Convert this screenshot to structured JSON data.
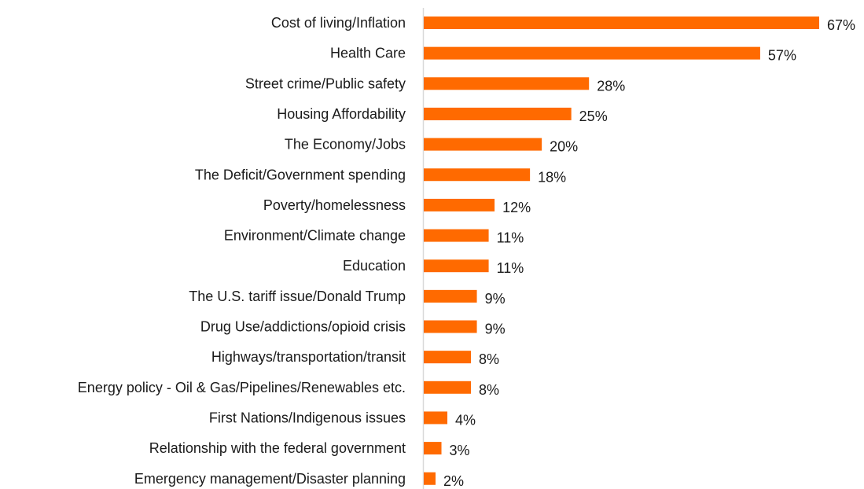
{
  "chart_data": {
    "type": "bar",
    "orientation": "horizontal",
    "title": "",
    "xlabel": "",
    "ylabel": "",
    "categories": [
      "Cost of living/Inflation",
      "Health Care",
      "Street crime/Public safety",
      "Housing Affordability",
      "The Economy/Jobs",
      "The Deficit/Government spending",
      "Poverty/homelessness",
      "Environment/Climate change",
      "Education",
      "The U.S. tariff issue/Donald Trump",
      "Drug Use/addictions/opioid crisis",
      "Highways/transportation/transit",
      "Energy policy - Oil & Gas/Pipelines/Renewables etc.",
      "First Nations/Indigenous issues",
      "Relationship with the federal government",
      "Emergency management/Disaster planning"
    ],
    "values": [
      67,
      57,
      28,
      25,
      20,
      18,
      12,
      11,
      11,
      9,
      9,
      8,
      8,
      4,
      3,
      2
    ],
    "value_labels": [
      "67%",
      "57%",
      "28%",
      "25%",
      "20%",
      "18%",
      "12%",
      "11%",
      "11%",
      "9%",
      "9%",
      "8%",
      "8%",
      "4%",
      "3%",
      "2%"
    ],
    "xlim": [
      0,
      67
    ],
    "grid": false,
    "legend": "none",
    "bar_color": "#ff6a00",
    "axis_color": "#d9d9d9"
  }
}
